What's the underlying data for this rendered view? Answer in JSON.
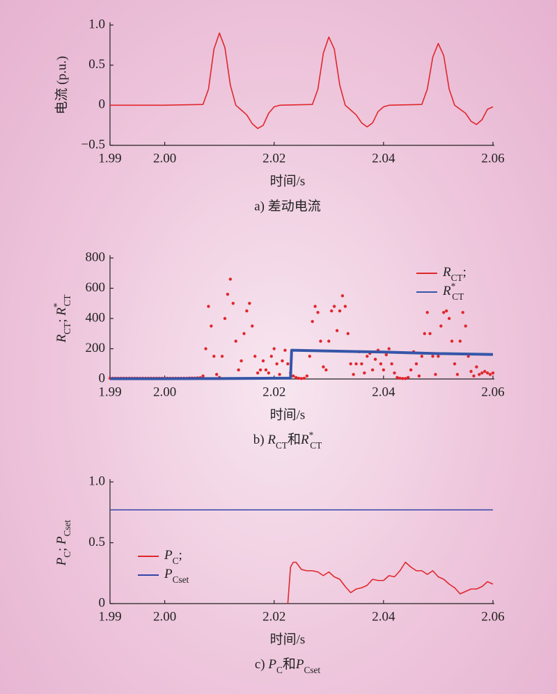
{
  "chart_data": [
    {
      "type": "line",
      "ylabel": "电流 (p.u.)",
      "xlabel": "时间/s",
      "caption": "a) 差动电流",
      "color": "#e0262b",
      "x": [
        1.99,
        2.0,
        2.007,
        2.008,
        2.009,
        2.01,
        2.011,
        2.012,
        2.013,
        2.014,
        2.015,
        2.016,
        2.017,
        2.018,
        2.019,
        2.02,
        2.021,
        2.027,
        2.028,
        2.029,
        2.03,
        2.031,
        2.032,
        2.033,
        2.034,
        2.035,
        2.036,
        2.037,
        2.038,
        2.039,
        2.04,
        2.041,
        2.047,
        2.048,
        2.049,
        2.05,
        2.051,
        2.052,
        2.053,
        2.054,
        2.055,
        2.056,
        2.057,
        2.058,
        2.059,
        2.06
      ],
      "values": [
        0,
        0,
        0.01,
        0.2,
        0.7,
        0.9,
        0.72,
        0.25,
        0,
        -0.06,
        -0.12,
        -0.23,
        -0.29,
        -0.25,
        -0.1,
        -0.02,
        0,
        0.01,
        0.2,
        0.65,
        0.85,
        0.7,
        0.25,
        0,
        -0.06,
        -0.12,
        -0.22,
        -0.27,
        -0.22,
        -0.08,
        -0.02,
        0,
        0.01,
        0.2,
        0.6,
        0.77,
        0.62,
        0.2,
        0,
        -0.05,
        -0.1,
        -0.2,
        -0.24,
        -0.18,
        -0.05,
        -0.02
      ],
      "xlim": [
        1.99,
        2.06
      ],
      "xticks": [
        1.99,
        {
          "value": 2.0,
          "label": "2.00"
        },
        2.02,
        2.04,
        2.06
      ],
      "ylim": [
        -0.5,
        1.0
      ],
      "yticks": [
        {
          "value": -0.5,
          "label": "−0.5"
        },
        0,
        0.5,
        {
          "value": 1.0,
          "label": "1.0"
        }
      ]
    },
    {
      "type": "line",
      "ylabel": "RCT; R*CT",
      "xlabel": "时间/s",
      "caption": "b) RCT和R*CT",
      "legend": "upper right",
      "series": [
        {
          "name": "RCT;",
          "color": "#e0262b",
          "style": "markers",
          "x": [
            1.99,
            1.9905,
            1.991,
            1.9915,
            1.992,
            1.9925,
            1.993,
            1.9935,
            1.994,
            1.9945,
            1.995,
            1.9955,
            1.996,
            1.9965,
            1.997,
            1.9975,
            1.998,
            1.9985,
            1.999,
            1.9995,
            2.0,
            2.0005,
            2.001,
            2.0015,
            2.002,
            2.0025,
            2.003,
            2.0035,
            2.004,
            2.0045,
            2.005,
            2.0055,
            2.006,
            2.0065,
            2.007,
            2.0075,
            2.008,
            2.0085,
            2.009,
            2.0095,
            2.01,
            2.0105,
            2.011,
            2.0115,
            2.012,
            2.0125,
            2.013,
            2.0135,
            2.014,
            2.0145,
            2.015,
            2.0155,
            2.016,
            2.0165,
            2.017,
            2.0175,
            2.018,
            2.0185,
            2.019,
            2.0195,
            2.02,
            2.0205,
            2.021,
            2.0215,
            2.022,
            2.0225,
            2.023,
            2.0235,
            2.024,
            2.0245,
            2.025,
            2.0255,
            2.026,
            2.0265,
            2.027,
            2.0275,
            2.028,
            2.0285,
            2.029,
            2.0295,
            2.03,
            2.0305,
            2.031,
            2.0315,
            2.032,
            2.0325,
            2.033,
            2.0335,
            2.034,
            2.0345,
            2.035,
            2.0355,
            2.036,
            2.0365,
            2.037,
            2.0375,
            2.038,
            2.0385,
            2.039,
            2.0395,
            2.04,
            2.0405,
            2.041,
            2.0415,
            2.042,
            2.0425,
            2.043,
            2.0435,
            2.044,
            2.0445,
            2.045,
            2.0455,
            2.046,
            2.0465,
            2.047,
            2.0475,
            2.048,
            2.0485,
            2.049,
            2.0495,
            2.05,
            2.0505,
            2.051,
            2.0515,
            2.052,
            2.0525,
            2.053,
            2.0535,
            2.054,
            2.0545,
            2.055,
            2.0555,
            2.056,
            2.0565,
            2.057,
            2.0575,
            2.058,
            2.0585,
            2.059,
            2.0595,
            2.06
          ],
          "values": [
            5,
            5,
            5,
            5,
            5,
            5,
            5,
            5,
            5,
            5,
            5,
            5,
            5,
            5,
            5,
            5,
            5,
            5,
            5,
            5,
            5,
            5,
            5,
            5,
            5,
            5,
            5,
            5,
            5,
            6,
            6,
            6,
            7,
            8,
            20,
            200,
            480,
            350,
            150,
            30,
            10,
            150,
            400,
            560,
            660,
            500,
            250,
            60,
            120,
            300,
            450,
            500,
            350,
            150,
            40,
            60,
            120,
            60,
            40,
            150,
            200,
            100,
            30,
            120,
            190,
            100,
            40,
            20,
            10,
            5,
            3,
            5,
            20,
            150,
            380,
            480,
            440,
            250,
            80,
            60,
            250,
            450,
            480,
            320,
            450,
            550,
            480,
            300,
            100,
            30,
            100,
            180,
            100,
            40,
            150,
            170,
            60,
            130,
            190,
            100,
            60,
            160,
            200,
            100,
            40,
            10,
            5,
            3,
            3,
            10,
            60,
            180,
            100,
            20,
            150,
            300,
            440,
            300,
            150,
            30,
            150,
            350,
            440,
            450,
            400,
            250,
            100,
            30,
            250,
            440,
            350,
            150,
            50,
            20,
            80,
            30,
            40,
            50,
            40,
            30,
            40
          ]
        },
        {
          "name": "R*CT",
          "color": "#3556a8",
          "style": "thick-line",
          "x": [
            1.99,
            2.0,
            2.01,
            2.02,
            2.023,
            2.0232,
            2.03,
            2.04,
            2.05,
            2.06
          ],
          "values": [
            2,
            2,
            3,
            5,
            6,
            190,
            185,
            178,
            168,
            162
          ]
        }
      ],
      "xlim": [
        1.99,
        2.06
      ],
      "xticks": [
        1.99,
        {
          "value": 2.0,
          "label": "2.00"
        },
        2.02,
        2.04,
        2.06
      ],
      "ylim": [
        0,
        800
      ],
      "yticks": [
        0,
        200,
        400,
        600,
        800
      ]
    },
    {
      "type": "line",
      "ylabel": "PC; PCset",
      "xlabel": "时间/s",
      "caption": "c) PC和PCset",
      "legend": "center left",
      "series": [
        {
          "name": "PC;",
          "color": "#e0262b",
          "style": "line",
          "x": [
            2.0225,
            2.023,
            2.0235,
            2.024,
            2.025,
            2.026,
            2.027,
            2.028,
            2.029,
            2.03,
            2.031,
            2.032,
            2.033,
            2.034,
            2.035,
            2.036,
            2.037,
            2.038,
            2.039,
            2.04,
            2.041,
            2.042,
            2.043,
            2.044,
            2.045,
            2.046,
            2.047,
            2.048,
            2.049,
            2.05,
            2.051,
            2.052,
            2.053,
            2.054,
            2.055,
            2.056,
            2.057,
            2.058,
            2.059,
            2.06
          ],
          "values": [
            0,
            0.3,
            0.34,
            0.34,
            0.28,
            0.27,
            0.27,
            0.26,
            0.23,
            0.26,
            0.22,
            0.2,
            0.14,
            0.09,
            0.12,
            0.13,
            0.15,
            0.2,
            0.19,
            0.19,
            0.23,
            0.22,
            0.27,
            0.34,
            0.3,
            0.27,
            0.27,
            0.24,
            0.27,
            0.22,
            0.2,
            0.16,
            0.13,
            0.08,
            0.1,
            0.12,
            0.12,
            0.14,
            0.18,
            0.16
          ]
        },
        {
          "name": "PCset",
          "color": "#3344a8",
          "style": "line",
          "x": [
            1.99,
            2.06
          ],
          "values": [
            0.77,
            0.77
          ]
        }
      ],
      "xlim": [
        1.99,
        2.06
      ],
      "xticks": [
        1.99,
        {
          "value": 2.0,
          "label": "2.00"
        },
        2.02,
        2.04,
        2.06
      ],
      "ylim": [
        0,
        1.0
      ],
      "yticks": [
        0,
        0.5,
        {
          "value": 1.0,
          "label": "1.0"
        }
      ]
    }
  ]
}
